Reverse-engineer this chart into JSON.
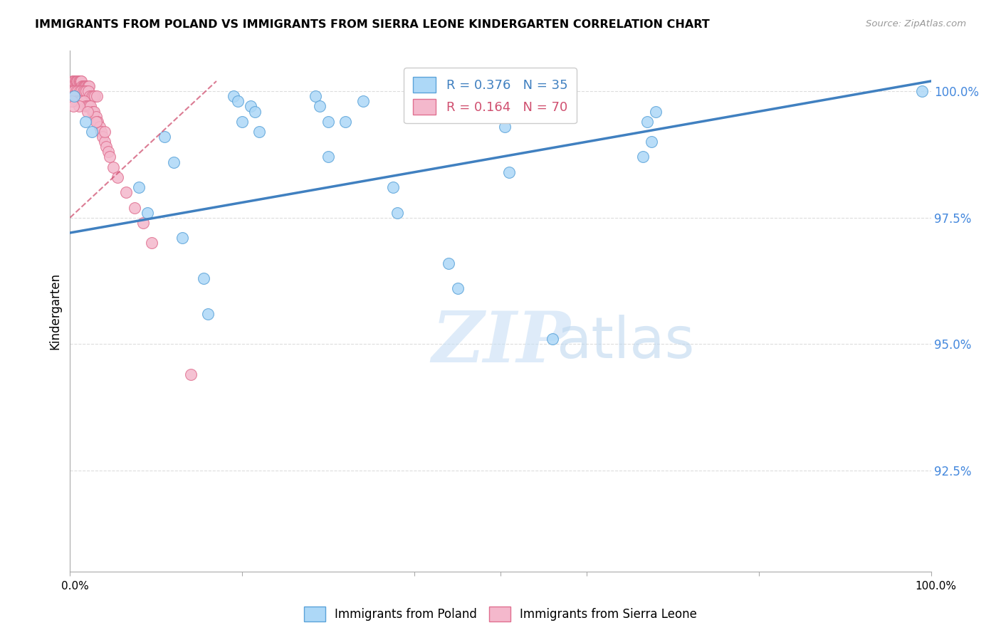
{
  "title": "IMMIGRANTS FROM POLAND VS IMMIGRANTS FROM SIERRA LEONE KINDERGARTEN CORRELATION CHART",
  "source": "Source: ZipAtlas.com",
  "ylabel": "Kindergarten",
  "ytick_labels": [
    "100.0%",
    "97.5%",
    "95.0%",
    "92.5%"
  ],
  "ytick_values": [
    1.0,
    0.975,
    0.95,
    0.925
  ],
  "xlim": [
    0.0,
    1.0
  ],
  "ylim": [
    0.905,
    1.008
  ],
  "legend_blue_R": "R = 0.376",
  "legend_blue_N": "N = 35",
  "legend_pink_R": "R = 0.164",
  "legend_pink_N": "N = 70",
  "label_blue": "Immigrants from Poland",
  "label_pink": "Immigrants from Sierra Leone",
  "watermark_zip": "ZIP",
  "watermark_atlas": "atlas",
  "blue_color": "#ADD8F7",
  "pink_color": "#F4B8CC",
  "blue_edge_color": "#5BA3D9",
  "pink_edge_color": "#E07090",
  "blue_line_color": "#4080C0",
  "pink_line_color": "#D05070",
  "blue_line_x": [
    0.0,
    1.0
  ],
  "blue_line_y": [
    0.972,
    1.002
  ],
  "pink_line_x": [
    0.0,
    0.17
  ],
  "pink_line_y": [
    0.975,
    1.002
  ],
  "blue_scatter_x": [
    0.005,
    0.018,
    0.025,
    0.19,
    0.195,
    0.21,
    0.215,
    0.285,
    0.29,
    0.3,
    0.11,
    0.12,
    0.08,
    0.34,
    0.32,
    0.515,
    0.505,
    0.51,
    0.68,
    0.67,
    0.675,
    0.665,
    0.99,
    0.09,
    0.13,
    0.155,
    0.16,
    0.375,
    0.38,
    0.44,
    0.45,
    0.56,
    0.2,
    0.22,
    0.3
  ],
  "blue_scatter_y": [
    0.999,
    0.994,
    0.992,
    0.999,
    0.998,
    0.997,
    0.996,
    0.999,
    0.997,
    0.994,
    0.991,
    0.986,
    0.981,
    0.998,
    0.994,
    0.997,
    0.993,
    0.984,
    0.996,
    0.994,
    0.99,
    0.987,
    1.0,
    0.976,
    0.971,
    0.963,
    0.956,
    0.981,
    0.976,
    0.966,
    0.961,
    0.951,
    0.994,
    0.992,
    0.987
  ],
  "pink_scatter_x": [
    0.003,
    0.004,
    0.005,
    0.006,
    0.007,
    0.008,
    0.009,
    0.01,
    0.011,
    0.012,
    0.013,
    0.014,
    0.015,
    0.016,
    0.017,
    0.018,
    0.019,
    0.02,
    0.021,
    0.022,
    0.003,
    0.005,
    0.007,
    0.009,
    0.011,
    0.013,
    0.015,
    0.017,
    0.019,
    0.021,
    0.023,
    0.025,
    0.027,
    0.029,
    0.031,
    0.003,
    0.005,
    0.007,
    0.009,
    0.011,
    0.013,
    0.016,
    0.018,
    0.02,
    0.022,
    0.024,
    0.026,
    0.028,
    0.03,
    0.032,
    0.034,
    0.036,
    0.038,
    0.04,
    0.042,
    0.044,
    0.046,
    0.05,
    0.055,
    0.065,
    0.075,
    0.085,
    0.095,
    0.01,
    0.02,
    0.03,
    0.04,
    0.002,
    0.004,
    0.14
  ],
  "pink_scatter_y": [
    1.002,
    1.002,
    1.002,
    1.002,
    1.002,
    1.002,
    1.002,
    1.002,
    1.002,
    1.002,
    1.002,
    1.001,
    1.001,
    1.001,
    1.001,
    1.001,
    1.001,
    1.001,
    1.001,
    1.001,
    1.0,
    1.0,
    1.0,
    1.0,
    1.0,
    1.0,
    1.0,
    1.0,
    1.0,
    1.0,
    0.999,
    0.999,
    0.999,
    0.999,
    0.999,
    0.999,
    0.999,
    0.998,
    0.998,
    0.998,
    0.998,
    0.998,
    0.997,
    0.997,
    0.997,
    0.997,
    0.996,
    0.996,
    0.995,
    0.994,
    0.993,
    0.992,
    0.991,
    0.99,
    0.989,
    0.988,
    0.987,
    0.985,
    0.983,
    0.98,
    0.977,
    0.974,
    0.97,
    0.997,
    0.996,
    0.994,
    0.992,
    0.998,
    0.997,
    0.944
  ]
}
